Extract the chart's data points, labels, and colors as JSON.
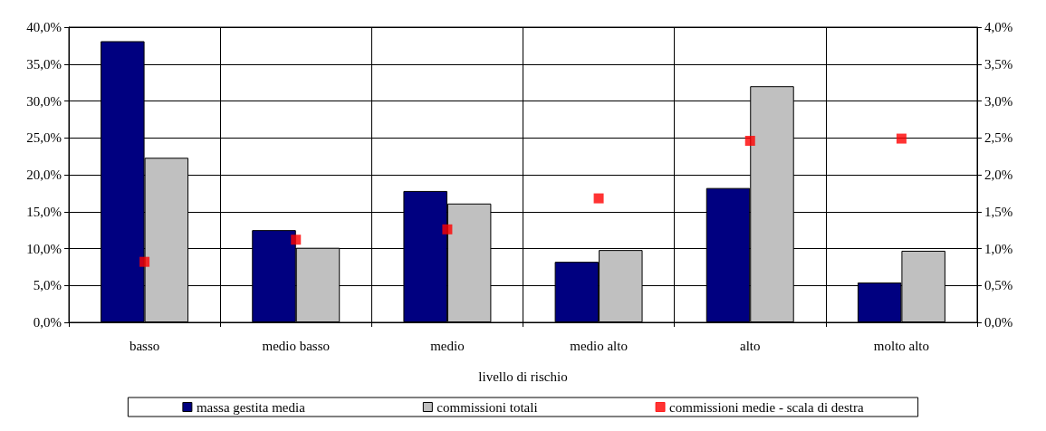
{
  "chart_data": {
    "type": "bar",
    "xlabel": "livello di rischio",
    "categories": [
      "basso",
      "medio basso",
      "medio",
      "medio alto",
      "alto",
      "molto alto"
    ],
    "series": [
      {
        "name": "massa gestita media",
        "color": "#000080",
        "values": [
          38.1,
          12.5,
          17.8,
          8.2,
          18.2,
          5.4
        ]
      },
      {
        "name": "commissioni totali",
        "color": "#c0c0c0",
        "values": [
          22.3,
          10.1,
          16.1,
          9.8,
          32.0,
          9.7
        ]
      },
      {
        "name": "commissioni medie - scala di destra",
        "type": "scatter",
        "axis": "y2",
        "marker": "square",
        "color": "#ff0000",
        "values": [
          0.82,
          1.12,
          1.26,
          1.68,
          2.46,
          2.49
        ]
      }
    ],
    "ylim": [
      0,
      40
    ],
    "yticks": [
      {
        "value": 0,
        "label": "0,0%"
      },
      {
        "value": 5,
        "label": "5,0%"
      },
      {
        "value": 10,
        "label": "10,0%"
      },
      {
        "value": 15,
        "label": "15,0%"
      },
      {
        "value": 20,
        "label": "20,0%"
      },
      {
        "value": 25,
        "label": "25,0%"
      },
      {
        "value": 30,
        "label": "30,0%"
      },
      {
        "value": 35,
        "label": "35,0%"
      },
      {
        "value": 40,
        "label": "40,0%"
      }
    ],
    "y2lim": [
      0,
      4
    ],
    "y2ticks": [
      {
        "value": 0,
        "label": "0,0%"
      },
      {
        "value": 0.5,
        "label": "0,5%"
      },
      {
        "value": 1,
        "label": "1,0%"
      },
      {
        "value": 1.5,
        "label": "1,5%"
      },
      {
        "value": 2,
        "label": "2,0%"
      },
      {
        "value": 2.5,
        "label": "2,5%"
      },
      {
        "value": 3,
        "label": "3,0%"
      },
      {
        "value": 3.5,
        "label": "3,5%"
      },
      {
        "value": 4,
        "label": "4,0%"
      }
    ],
    "grid": true,
    "legend": "bottom"
  }
}
